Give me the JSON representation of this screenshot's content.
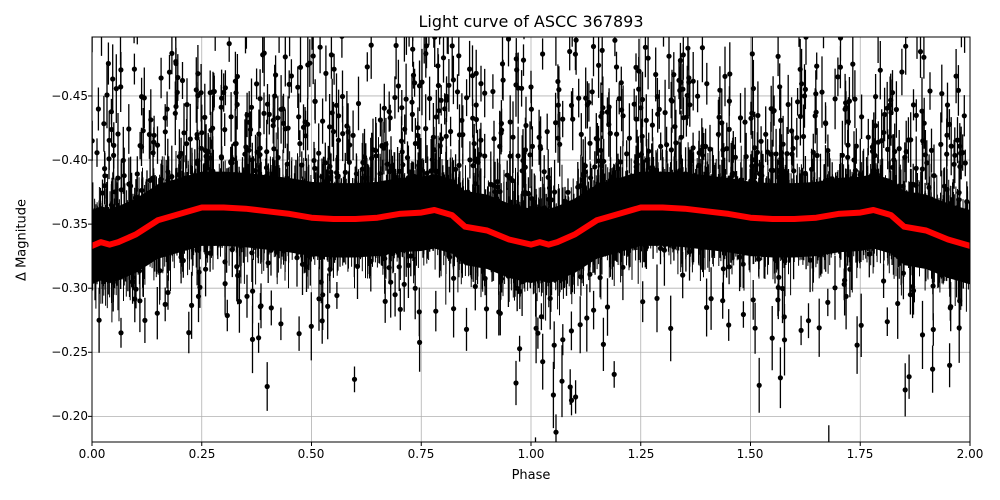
{
  "figure": {
    "title": "Light curve of ASCC 367893",
    "xlabel": "Phase",
    "ylabel": "Δ Magnitude",
    "x_ticks": [
      "0.00",
      "0.25",
      "0.50",
      "0.75",
      "1.00",
      "1.25",
      "1.50",
      "1.75",
      "2.00"
    ],
    "y_ticks": [
      "−0.45",
      "−0.40",
      "−0.35",
      "−0.30",
      "−0.25",
      "−0.20"
    ]
  },
  "colors": {
    "data_points": "#000000",
    "model_curve": "#ff0000",
    "grid": "#b0b0b0"
  },
  "chart_data": {
    "type": "scatter",
    "title": "Light curve of ASCC 367893",
    "xlabel": "Phase",
    "ylabel": "Δ Magnitude",
    "xlim": [
      0.0,
      2.0
    ],
    "ylim": [
      -0.18,
      -0.496
    ],
    "y_inverted": true,
    "grid": true,
    "x_ticks": [
      0.0,
      0.25,
      0.5,
      0.75,
      1.0,
      1.25,
      1.5,
      1.75,
      2.0
    ],
    "y_ticks": [
      -0.45,
      -0.4,
      -0.35,
      -0.3,
      -0.25,
      -0.2
    ],
    "series": [
      {
        "name": "Observations (with error bars)",
        "style": "black points with vertical error bars",
        "description": "Dense band of photometric points centered near -0.35 spanning roughly -0.38 to -0.32; scatter extends across full y-range, thinning toward extremes; denser low-scatter regions near phases 0.0, 1.0, 2.0 (eclipse) and 0.85–1.15",
        "band_center": -0.355,
        "band_range": [
          -0.385,
          -0.32
        ]
      },
      {
        "name": "Binned model",
        "style": "thick red line",
        "x": [
          0.0,
          0.02,
          0.04,
          0.06,
          0.1,
          0.15,
          0.2,
          0.25,
          0.3,
          0.35,
          0.4,
          0.45,
          0.5,
          0.55,
          0.6,
          0.65,
          0.7,
          0.75,
          0.78,
          0.82,
          0.85,
          0.9,
          0.95,
          1.0,
          1.02,
          1.04,
          1.06,
          1.1,
          1.15,
          1.2,
          1.25,
          1.3,
          1.35,
          1.4,
          1.45,
          1.5,
          1.55,
          1.6,
          1.65,
          1.7,
          1.75,
          1.78,
          1.82,
          1.85,
          1.9,
          1.95,
          2.0
        ],
        "y": [
          -0.333,
          -0.336,
          -0.334,
          -0.336,
          -0.342,
          -0.353,
          -0.358,
          -0.363,
          -0.363,
          -0.362,
          -0.36,
          -0.358,
          -0.355,
          -0.354,
          -0.354,
          -0.355,
          -0.358,
          -0.359,
          -0.361,
          -0.357,
          -0.348,
          -0.345,
          -0.338,
          -0.334,
          -0.336,
          -0.334,
          -0.336,
          -0.342,
          -0.353,
          -0.358,
          -0.363,
          -0.363,
          -0.362,
          -0.36,
          -0.358,
          -0.355,
          -0.354,
          -0.354,
          -0.355,
          -0.358,
          -0.359,
          -0.361,
          -0.357,
          -0.348,
          -0.345,
          -0.338,
          -0.333
        ]
      }
    ]
  }
}
